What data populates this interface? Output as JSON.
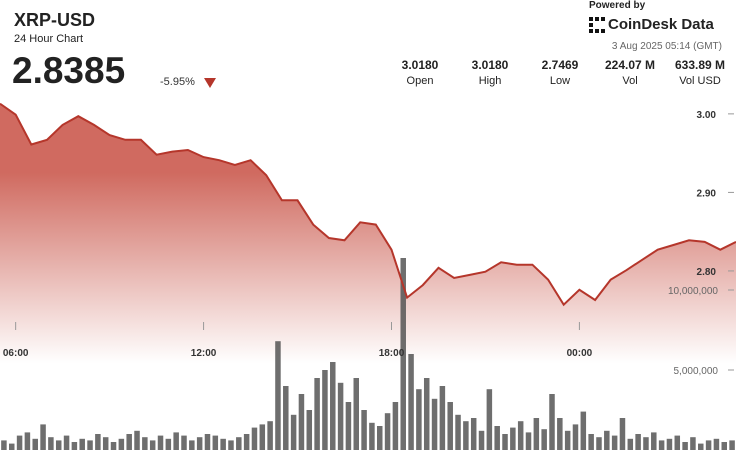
{
  "header": {
    "symbol": "XRP-USD",
    "subtitle": "24 Hour Chart",
    "price": "2.8385",
    "change": "-5.95%",
    "powered_by": "Powered by",
    "brand": "CoinDesk Data",
    "timestamp": "3 Aug 2025 05:14 (GMT)"
  },
  "stats": [
    {
      "value": "3.0180",
      "label": "Open"
    },
    {
      "value": "3.0180",
      "label": "High"
    },
    {
      "value": "2.7469",
      "label": "Low"
    },
    {
      "value": "224.07 M",
      "label": "Vol"
    },
    {
      "value": "633.89 M",
      "label": "Vol USD"
    }
  ],
  "chart_data": [
    {
      "type": "line",
      "color": "#b5362b",
      "x": [
        5.5,
        6,
        6.5,
        7,
        7.5,
        8,
        8.5,
        9,
        9.5,
        10,
        10.5,
        11,
        11.5,
        12,
        12.5,
        13,
        13.5,
        14,
        14.5,
        15,
        15.5,
        16,
        16.5,
        17,
        17.5,
        18,
        18.5,
        19,
        19.5,
        20,
        20.5,
        21,
        21.5,
        22,
        22.5,
        23,
        23.5,
        24,
        24.5,
        25,
        25.5,
        26,
        26.5,
        27,
        27.5,
        28,
        28.5,
        29
      ],
      "values": [
        3.013,
        2.999,
        2.961,
        2.967,
        2.986,
        2.997,
        2.986,
        2.973,
        2.967,
        2.967,
        2.948,
        2.952,
        2.954,
        2.945,
        2.941,
        2.935,
        2.941,
        2.922,
        2.89,
        2.89,
        2.859,
        2.842,
        2.839,
        2.862,
        2.859,
        2.827,
        2.766,
        2.782,
        2.804,
        2.791,
        2.795,
        2.799,
        2.811,
        2.808,
        2.808,
        2.789,
        2.757,
        2.776,
        2.763,
        2.789,
        2.801,
        2.814,
        2.827,
        2.833,
        2.839,
        2.837,
        2.827,
        2.837
      ],
      "xlim": [
        5.5,
        29
      ],
      "ylim": [
        2.572,
        3.145
      ],
      "xticks": [
        {
          "value": 6,
          "label": "06:00"
        },
        {
          "value": 12,
          "label": "12:00"
        },
        {
          "value": 18,
          "label": "18:00"
        },
        {
          "value": 24,
          "label": "00:00"
        }
      ],
      "yticks": [
        {
          "value": 2.8,
          "label": "2.80"
        },
        {
          "value": 2.9,
          "label": "2.90"
        },
        {
          "value": 3.0,
          "label": "3.00"
        }
      ]
    },
    {
      "type": "bar",
      "color": "#555555",
      "x": [
        5.625,
        5.875,
        6.125,
        6.375,
        6.625,
        6.875,
        7.125,
        7.375,
        7.625,
        7.875,
        8.125,
        8.375,
        8.625,
        8.875,
        9.125,
        9.375,
        9.625,
        9.875,
        10.125,
        10.375,
        10.625,
        10.875,
        11.125,
        11.375,
        11.625,
        11.875,
        12.125,
        12.375,
        12.625,
        12.875,
        13.125,
        13.375,
        13.625,
        13.875,
        14.125,
        14.375,
        14.625,
        14.875,
        15.125,
        15.375,
        15.625,
        15.875,
        16.125,
        16.375,
        16.625,
        16.875,
        17.125,
        17.375,
        17.625,
        17.875,
        18.125,
        18.375,
        18.625,
        18.875,
        19.125,
        19.375,
        19.625,
        19.875,
        20.125,
        20.375,
        20.625,
        20.875,
        21.125,
        21.375,
        21.625,
        21.875,
        22.125,
        22.375,
        22.625,
        22.875,
        23.125,
        23.375,
        23.625,
        23.875,
        24.125,
        24.375,
        24.625,
        24.875,
        25.125,
        25.375,
        25.625,
        25.875,
        26.125,
        26.375,
        26.625,
        26.875,
        27.125,
        27.375,
        27.625,
        27.875,
        28.125,
        28.375,
        28.625,
        28.875
      ],
      "values": [
        600000,
        400000,
        900000,
        1100000,
        700000,
        1600000,
        800000,
        600000,
        900000,
        500000,
        700000,
        600000,
        1000000,
        800000,
        500000,
        700000,
        1000000,
        1200000,
        800000,
        600000,
        900000,
        700000,
        1100000,
        900000,
        600000,
        800000,
        1000000,
        900000,
        700000,
        600000,
        800000,
        1000000,
        1400000,
        1600000,
        1800000,
        6800000,
        4000000,
        2200000,
        3500000,
        2500000,
        4500000,
        5000000,
        5500000,
        4200000,
        3000000,
        4500000,
        2500000,
        1700000,
        1500000,
        2300000,
        3000000,
        12000000,
        6000000,
        3800000,
        4500000,
        3200000,
        4000000,
        3000000,
        2200000,
        1800000,
        2000000,
        1200000,
        3800000,
        1500000,
        1000000,
        1400000,
        1800000,
        1100000,
        2000000,
        1300000,
        3500000,
        2000000,
        1200000,
        1600000,
        2400000,
        1000000,
        800000,
        1200000,
        900000,
        2000000,
        700000,
        1000000,
        800000,
        1100000,
        600000,
        700000,
        900000,
        500000,
        800000,
        400000,
        600000,
        700000,
        500000,
        600000
      ],
      "xlim": [
        5.5,
        29
      ],
      "ylim": [
        0,
        28125000
      ],
      "yticks": [
        {
          "value": 5000000,
          "label": "5,000,000"
        },
        {
          "value": 10000000,
          "label": "10,000,000"
        }
      ]
    }
  ]
}
